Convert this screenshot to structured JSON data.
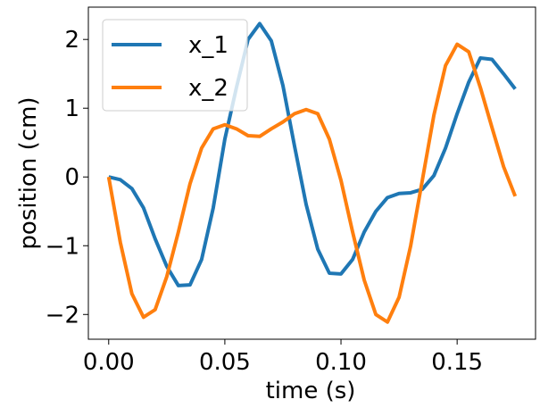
{
  "chart_data": {
    "type": "line",
    "xlabel": "time (s)",
    "ylabel": "position (cm)",
    "x": [
      0,
      0.005,
      0.01,
      0.015,
      0.02,
      0.025,
      0.03,
      0.035,
      0.04,
      0.045,
      0.05,
      0.055,
      0.06,
      0.065,
      0.07,
      0.075,
      0.08,
      0.085,
      0.09,
      0.095,
      0.1,
      0.105,
      0.11,
      0.115,
      0.12,
      0.125,
      0.13,
      0.135,
      0.14,
      0.145,
      0.15,
      0.155,
      0.16,
      0.165,
      0.17,
      0.175
    ],
    "series": [
      {
        "name": "x_1",
        "color": "#1f77b4",
        "values": [
          0,
          -0.04,
          -0.17,
          -0.45,
          -0.9,
          -1.3,
          -1.58,
          -1.57,
          -1.2,
          -0.45,
          0.55,
          1.3,
          2.0,
          2.23,
          1.98,
          1.33,
          0.45,
          -0.4,
          -1.05,
          -1.4,
          -1.41,
          -1.2,
          -0.8,
          -0.5,
          -0.3,
          -0.24,
          -0.23,
          -0.18,
          0.02,
          0.42,
          0.92,
          1.38,
          1.73,
          1.71,
          1.5,
          1.28
        ]
      },
      {
        "name": "x_2",
        "color": "#ff7f0e",
        "values": [
          0,
          -0.95,
          -1.7,
          -2.04,
          -1.93,
          -1.45,
          -0.8,
          -0.1,
          0.42,
          0.7,
          0.76,
          0.7,
          0.6,
          0.59,
          0.7,
          0.8,
          0.92,
          0.98,
          0.92,
          0.55,
          -0.05,
          -0.8,
          -1.5,
          -2.0,
          -2.11,
          -1.75,
          -1.0,
          -0.05,
          0.9,
          1.62,
          1.93,
          1.82,
          1.3,
          0.72,
          0.15,
          -0.28
        ]
      }
    ],
    "xlim": [
      -0.00875,
      0.18375
    ],
    "xticks": [
      {
        "value": 0,
        "label": "0.00"
      },
      {
        "value": 0.05,
        "label": "0.05"
      },
      {
        "value": 0.1,
        "label": "0.10"
      },
      {
        "value": 0.15,
        "label": "0.15"
      }
    ],
    "ylim": [
      -2.36,
      2.47
    ],
    "yticks": [
      {
        "value": -2,
        "label": "−2"
      },
      {
        "value": -1,
        "label": "−1"
      },
      0,
      1,
      2
    ],
    "grid": false,
    "legend": "upper left"
  }
}
